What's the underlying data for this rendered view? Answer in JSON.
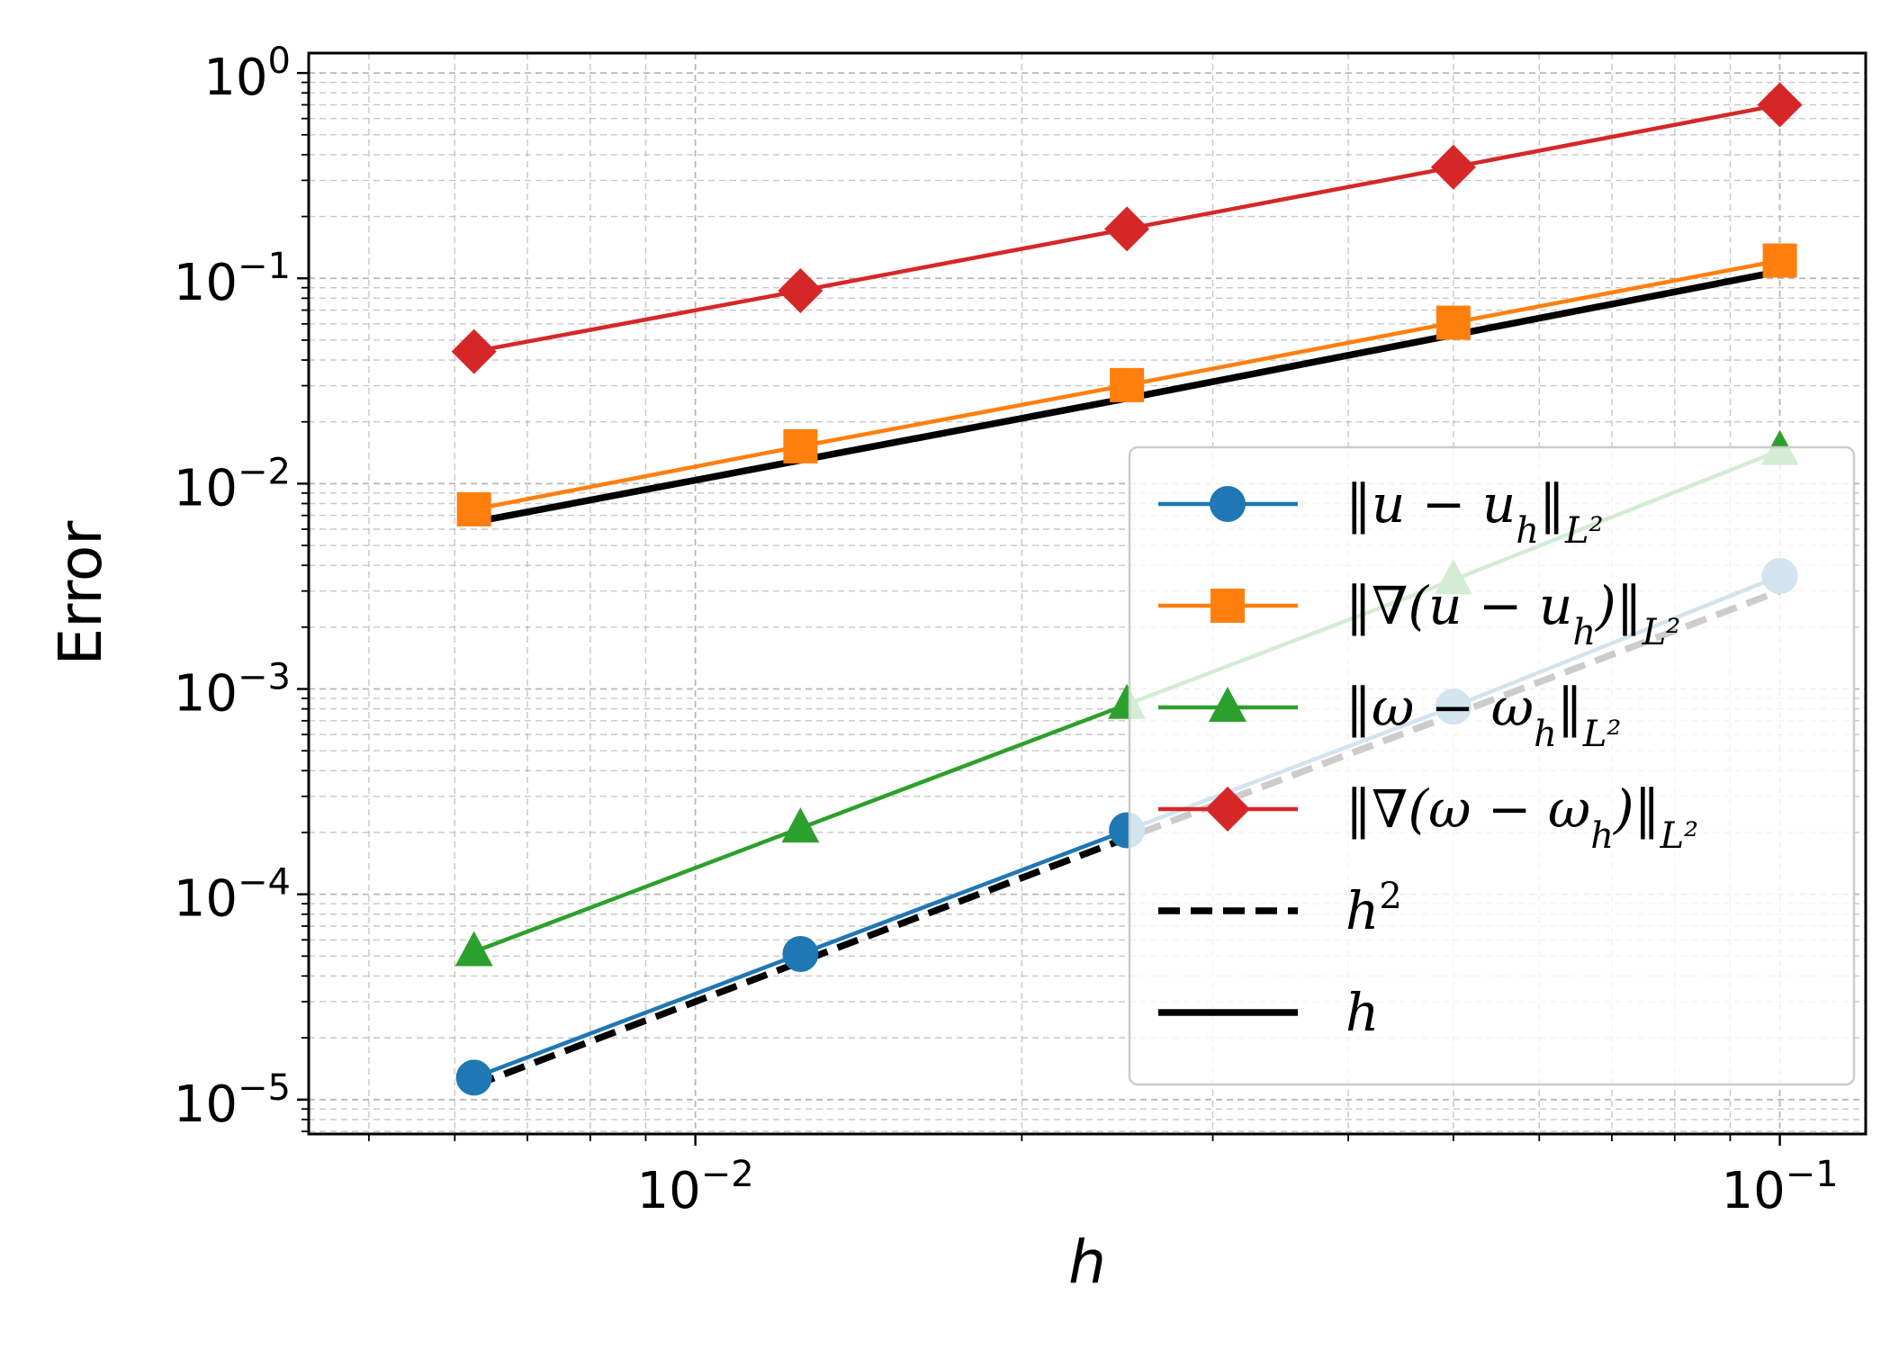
{
  "chart_data": {
    "type": "line",
    "title": "",
    "xlabel": "h",
    "ylabel": "Error",
    "xscale": "log",
    "yscale": "log",
    "xlim": [
      0.0044,
      0.12
    ],
    "ylim": [
      6.8e-06,
      1.25
    ],
    "grid": true,
    "legend_position": "center-right",
    "x": [
      0.00625,
      0.0125,
      0.025,
      0.05,
      0.1
    ],
    "x_ticks": [
      {
        "value": 0.01,
        "base": "10",
        "exp": "−2"
      },
      {
        "value": 0.1,
        "base": "10",
        "exp": "−1"
      }
    ],
    "y_ticks": [
      {
        "value": 1,
        "base": "10",
        "exp": "0"
      },
      {
        "value": 0.1,
        "base": "10",
        "exp": "−1"
      },
      {
        "value": 0.01,
        "base": "10",
        "exp": "−2"
      },
      {
        "value": 0.001,
        "base": "10",
        "exp": "−3"
      },
      {
        "value": 0.0001,
        "base": "10",
        "exp": "−4"
      },
      {
        "value": 1e-05,
        "base": "10",
        "exp": "−5"
      }
    ],
    "series": [
      {
        "name": "‖u − u_h‖_{L²}",
        "legend_parts": [
          [
            "‖u − u",
            ""
          ],
          [
            "h",
            "sub"
          ],
          [
            "‖",
            ""
          ],
          [
            "L²",
            "sub"
          ]
        ],
        "color": "#1f77b4",
        "marker": "circle",
        "line": "solid",
        "values": [
          1.28e-05,
          5.12e-05,
          0.000205,
          0.00082,
          0.00355
        ]
      },
      {
        "name": "‖∇(u − u_h)‖_{L²}",
        "legend_parts": [
          [
            "‖∇(u − u",
            ""
          ],
          [
            "h",
            "sub"
          ],
          [
            ")‖",
            ""
          ],
          [
            "L²",
            "sub"
          ]
        ],
        "color": "#ff7f0e",
        "marker": "square",
        "line": "solid",
        "values": [
          0.0075,
          0.0152,
          0.0302,
          0.0608,
          0.122
        ]
      },
      {
        "name": "‖ω − ω_h‖_{L²}",
        "legend_parts": [
          [
            "‖ω − ω",
            ""
          ],
          [
            "h",
            "sub"
          ],
          [
            "‖",
            ""
          ],
          [
            "L²",
            "sub"
          ]
        ],
        "color": "#2ca02c",
        "marker": "triangle",
        "line": "solid",
        "values": [
          5.25e-05,
          0.00021,
          0.00084,
          0.0034,
          0.0145
        ]
      },
      {
        "name": "‖∇(ω − ω_h)‖_{L²}",
        "legend_parts": [
          [
            "‖∇(ω − ω",
            ""
          ],
          [
            "h",
            "sub"
          ],
          [
            ")‖",
            ""
          ],
          [
            "L²",
            "sub"
          ]
        ],
        "color": "#d62728",
        "marker": "diamond",
        "line": "solid",
        "values": [
          0.044,
          0.087,
          0.174,
          0.348,
          0.7
        ]
      },
      {
        "name": "h²",
        "legend_parts": [
          [
            "h",
            ""
          ],
          [
            "2",
            "sup"
          ]
        ],
        "color": "#000000",
        "marker": "none",
        "line": "dashed",
        "values": [
          1.17e-05,
          4.69e-05,
          0.000188,
          0.00075,
          0.003
        ]
      },
      {
        "name": "h",
        "legend_parts": [
          [
            "h",
            ""
          ]
        ],
        "color": "#000000",
        "marker": "none",
        "line": "solid",
        "values": [
          0.0065,
          0.013,
          0.026,
          0.053,
          0.108
        ]
      }
    ]
  }
}
